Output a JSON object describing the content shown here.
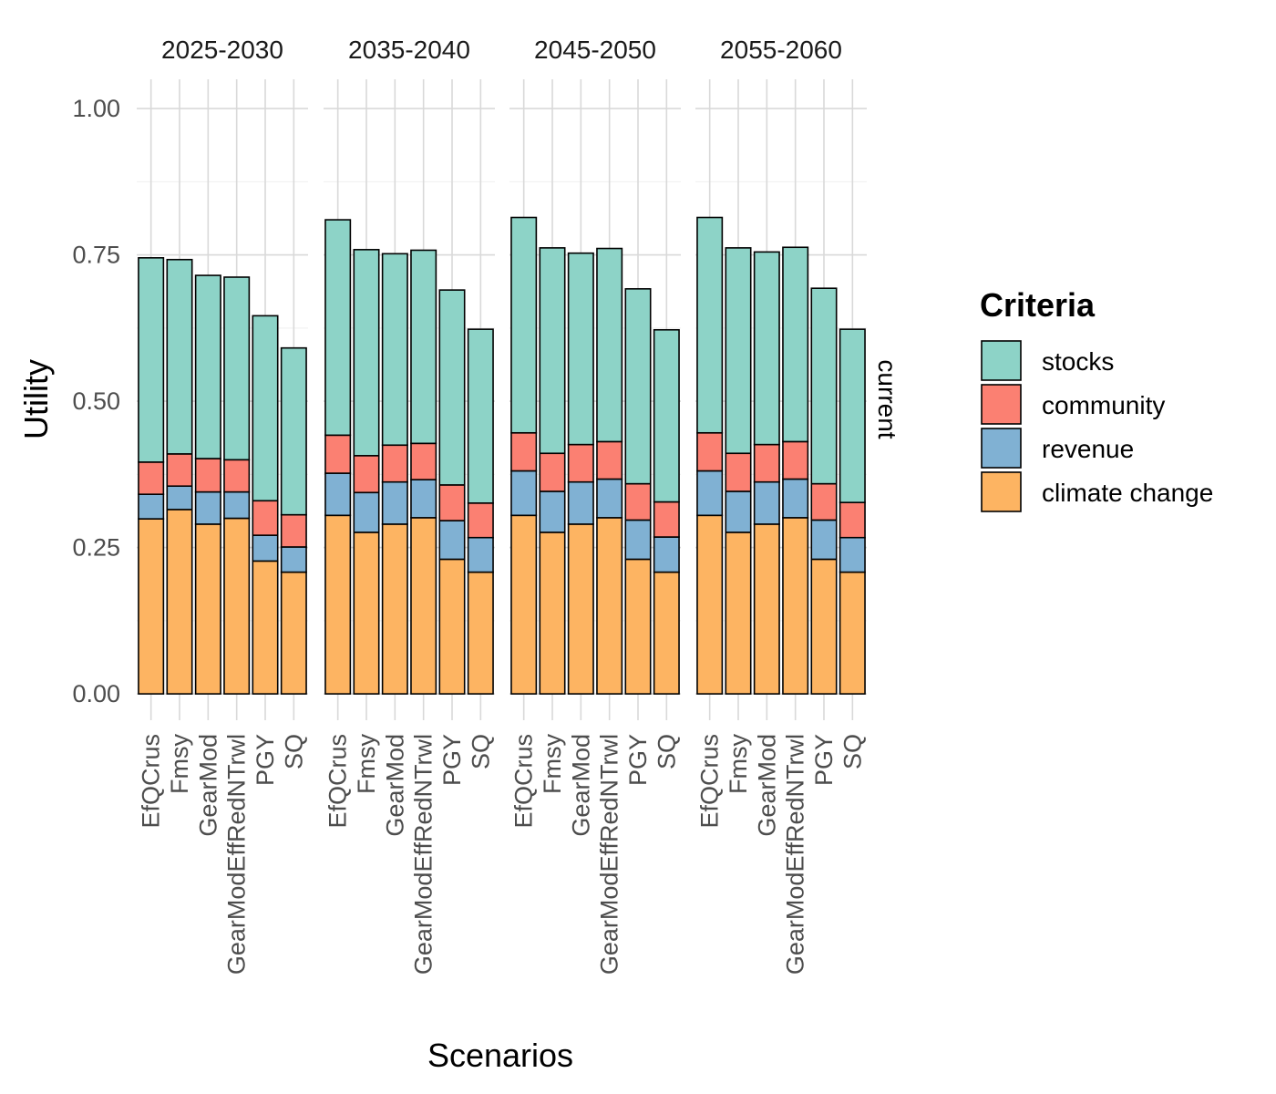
{
  "chart_data": {
    "type": "bar",
    "stacked": true,
    "xlabel": "Scenarios",
    "ylabel": "Utility",
    "ylim": [
      0,
      1
    ],
    "yticks": [
      0.0,
      0.25,
      0.5,
      0.75,
      1.0
    ],
    "ytick_labels": [
      "0.00",
      "0.25",
      "0.50",
      "0.75",
      "1.00"
    ],
    "grid": true,
    "categories": [
      "EfQCrus",
      "Fmsy",
      "GearMod",
      "GearModEffRedNTrwl",
      "PGY",
      "SQ"
    ],
    "row_strip": "current",
    "legend": {
      "title": "Criteria",
      "position": "right",
      "entries": [
        {
          "name": "stocks",
          "color": "#8DD3C7"
        },
        {
          "name": "community",
          "color": "#FB8072"
        },
        {
          "name": "revenue",
          "color": "#80B1D3"
        },
        {
          "name": "climate change",
          "color": "#FDB462"
        }
      ]
    },
    "facets": [
      {
        "title": "2025-2030",
        "series": [
          {
            "name": "climate change",
            "values": [
              0.299,
              0.315,
              0.29,
              0.3,
              0.227,
              0.208
            ]
          },
          {
            "name": "revenue",
            "values": [
              0.042,
              0.04,
              0.055,
              0.045,
              0.044,
              0.043
            ]
          },
          {
            "name": "community",
            "values": [
              0.055,
              0.055,
              0.057,
              0.055,
              0.059,
              0.055
            ]
          },
          {
            "name": "stocks",
            "values": [
              0.349,
              0.332,
              0.313,
              0.312,
              0.316,
              0.285
            ]
          }
        ]
      },
      {
        "title": "2035-2040",
        "series": [
          {
            "name": "climate change",
            "values": [
              0.305,
              0.276,
              0.29,
              0.301,
              0.23,
              0.208
            ]
          },
          {
            "name": "revenue",
            "values": [
              0.072,
              0.068,
              0.072,
              0.065,
              0.066,
              0.059
            ]
          },
          {
            "name": "community",
            "values": [
              0.065,
              0.063,
              0.063,
              0.062,
              0.061,
              0.059
            ]
          },
          {
            "name": "stocks",
            "values": [
              0.368,
              0.352,
              0.327,
              0.33,
              0.333,
              0.297
            ]
          }
        ]
      },
      {
        "title": "2045-2050",
        "series": [
          {
            "name": "climate change",
            "values": [
              0.305,
              0.276,
              0.29,
              0.301,
              0.23,
              0.208
            ]
          },
          {
            "name": "revenue",
            "values": [
              0.076,
              0.07,
              0.072,
              0.066,
              0.067,
              0.06
            ]
          },
          {
            "name": "community",
            "values": [
              0.065,
              0.065,
              0.064,
              0.064,
              0.062,
              0.06
            ]
          },
          {
            "name": "stocks",
            "values": [
              0.368,
              0.351,
              0.327,
              0.33,
              0.333,
              0.294
            ]
          }
        ]
      },
      {
        "title": "2055-2060",
        "series": [
          {
            "name": "climate change",
            "values": [
              0.305,
              0.276,
              0.29,
              0.301,
              0.23,
              0.208
            ]
          },
          {
            "name": "revenue",
            "values": [
              0.076,
              0.07,
              0.072,
              0.066,
              0.067,
              0.059
            ]
          },
          {
            "name": "community",
            "values": [
              0.065,
              0.065,
              0.064,
              0.064,
              0.062,
              0.06
            ]
          },
          {
            "name": "stocks",
            "values": [
              0.368,
              0.351,
              0.329,
              0.332,
              0.334,
              0.296
            ]
          }
        ]
      }
    ]
  }
}
